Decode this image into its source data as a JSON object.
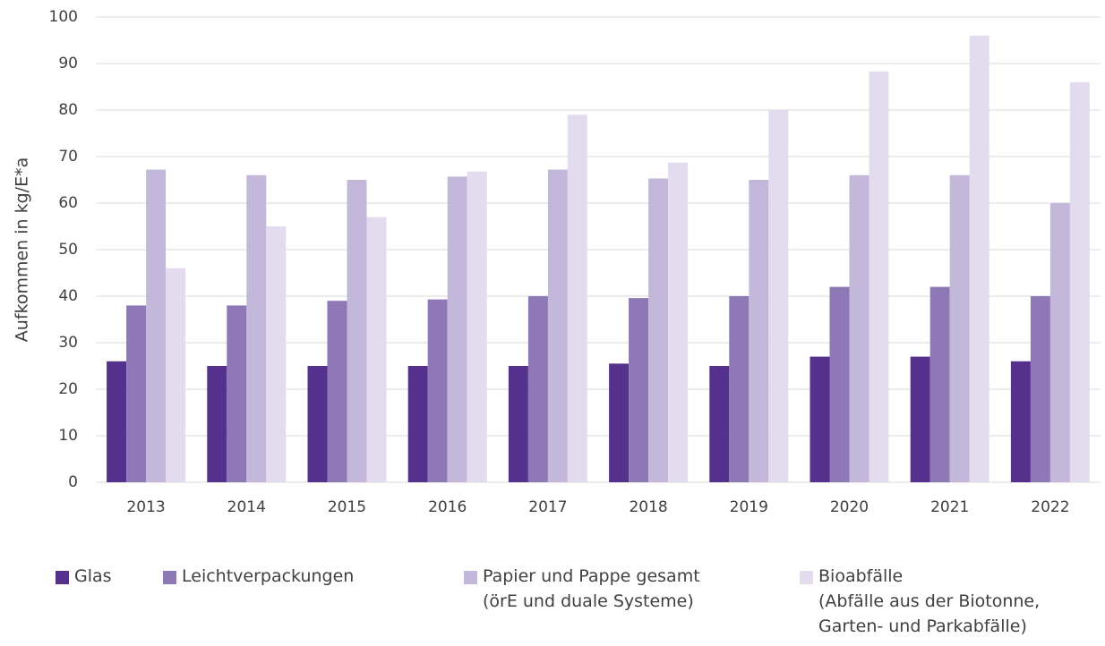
{
  "chart_data": {
    "type": "bar",
    "ylabel": "Aufkommen in kg/E*a",
    "categories": [
      "2013",
      "2014",
      "2015",
      "2016",
      "2017",
      "2018",
      "2019",
      "2020",
      "2021",
      "2022"
    ],
    "series": [
      {
        "name": "Glas",
        "color": "#55308d",
        "values": [
          26,
          25,
          25,
          25,
          25,
          25.5,
          25,
          27,
          27,
          26
        ]
      },
      {
        "name": "Leichtverpackungen",
        "color": "#8e78b6",
        "values": [
          38,
          38,
          39,
          39.3,
          40,
          39.6,
          40,
          42,
          42,
          40
        ]
      },
      {
        "name": "Papier und Pappe gesamt\n(örE und duale Systeme)",
        "color": "#c4b8da",
        "values": [
          67.2,
          66,
          65,
          65.7,
          67.2,
          65.3,
          65,
          66,
          66,
          60
        ]
      },
      {
        "name": "Bioabfälle\n(Abfälle aus der Biotonne,\nGarten- und Parkabfälle)",
        "color": "#e3dcee",
        "values": [
          46,
          55,
          57,
          66.8,
          79,
          68.7,
          80,
          88.3,
          96,
          86
        ]
      }
    ],
    "ylim": [
      0,
      100
    ],
    "yticks": [
      0,
      10,
      20,
      30,
      40,
      50,
      60,
      70,
      80,
      90,
      100
    ],
    "grid": true,
    "legend": "bottom"
  }
}
